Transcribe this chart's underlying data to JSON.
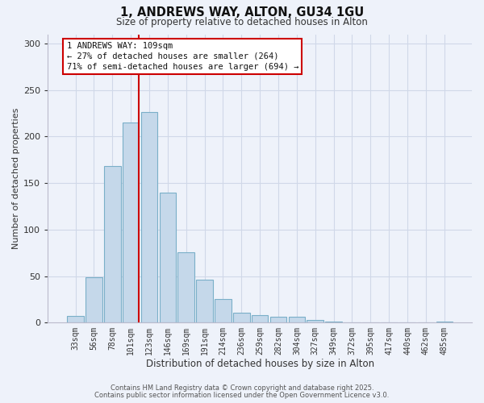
{
  "title": "1, ANDREWS WAY, ALTON, GU34 1GU",
  "subtitle": "Size of property relative to detached houses in Alton",
  "xlabel": "Distribution of detached houses by size in Alton",
  "ylabel": "Number of detached properties",
  "bar_labels": [
    "33sqm",
    "56sqm",
    "78sqm",
    "101sqm",
    "123sqm",
    "146sqm",
    "169sqm",
    "191sqm",
    "214sqm",
    "236sqm",
    "259sqm",
    "282sqm",
    "304sqm",
    "327sqm",
    "349sqm",
    "372sqm",
    "395sqm",
    "417sqm",
    "440sqm",
    "462sqm",
    "485sqm"
  ],
  "bar_values": [
    7,
    49,
    168,
    215,
    226,
    140,
    76,
    46,
    25,
    11,
    8,
    6,
    6,
    3,
    1,
    0,
    0,
    0,
    0,
    0,
    1
  ],
  "bar_color": "#c5d8ea",
  "bar_edgecolor": "#7aafc8",
  "ylim": [
    0,
    310
  ],
  "yticks": [
    0,
    50,
    100,
    150,
    200,
    250,
    300
  ],
  "vline_color": "#cc0000",
  "annotation_title": "1 ANDREWS WAY: 109sqm",
  "annotation_line1": "← 27% of detached houses are smaller (264)",
  "annotation_line2": "71% of semi-detached houses are larger (694) →",
  "footer1": "Contains HM Land Registry data © Crown copyright and database right 2025.",
  "footer2": "Contains public sector information licensed under the Open Government Licence v3.0.",
  "background_color": "#eef2fa",
  "grid_color": "#d0d8e8"
}
